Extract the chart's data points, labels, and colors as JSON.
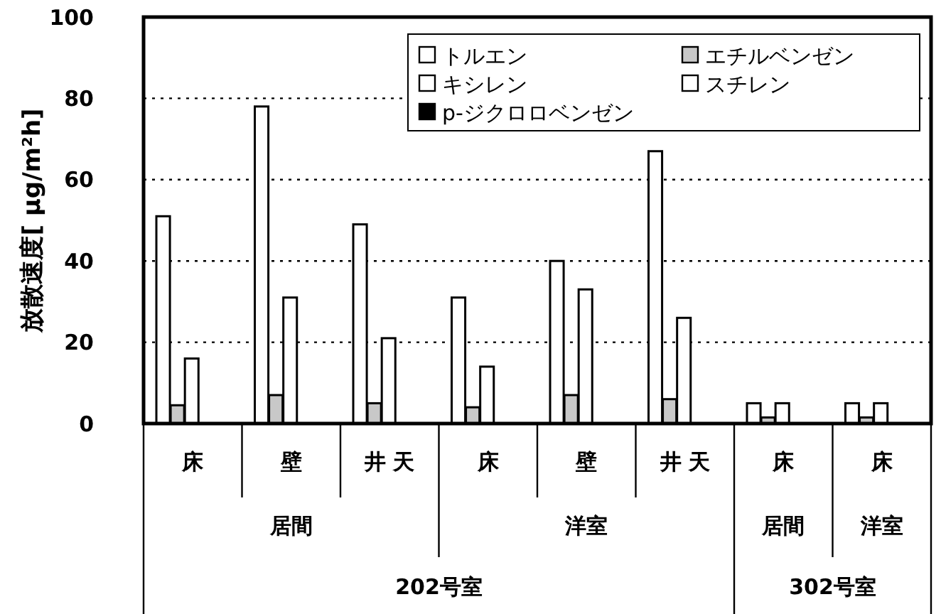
{
  "chart_data": {
    "type": "bar",
    "ylabel": "放散速度[ μg/m²h]",
    "categories": [
      "床",
      "壁",
      "井 天",
      "床",
      "壁",
      "井 天",
      "床",
      "床"
    ],
    "annotations": [
      "居間",
      "洋室",
      "居間",
      "洋室",
      "202号室",
      "302号室"
    ],
    "series": [
      {
        "name": "トルエン",
        "color": "#ffffff",
        "values": [
          51,
          78,
          49,
          31,
          40,
          67,
          5,
          5
        ]
      },
      {
        "name": "エチルベンゼン",
        "color": "#c8c8c8",
        "values": [
          4.5,
          7,
          5,
          4,
          7,
          6,
          1.5,
          1.5
        ]
      },
      {
        "name": "キシレン",
        "color": "#ffffff",
        "values": [
          16,
          31,
          21,
          14,
          33,
          26,
          5,
          5
        ]
      },
      {
        "name": "スチレン",
        "color": "#ffffff",
        "values": [
          0,
          0,
          0,
          0,
          0,
          0,
          0,
          0
        ]
      },
      {
        "name": "p-ジクロロベンゼン",
        "color": "#000000",
        "values": [
          0,
          0,
          0,
          0,
          0,
          0,
          0,
          0
        ]
      }
    ],
    "ylim": [
      0,
      100
    ],
    "yticks": [
      0,
      20,
      40,
      60,
      80,
      100
    ],
    "grid": "y",
    "legend": "top right"
  }
}
